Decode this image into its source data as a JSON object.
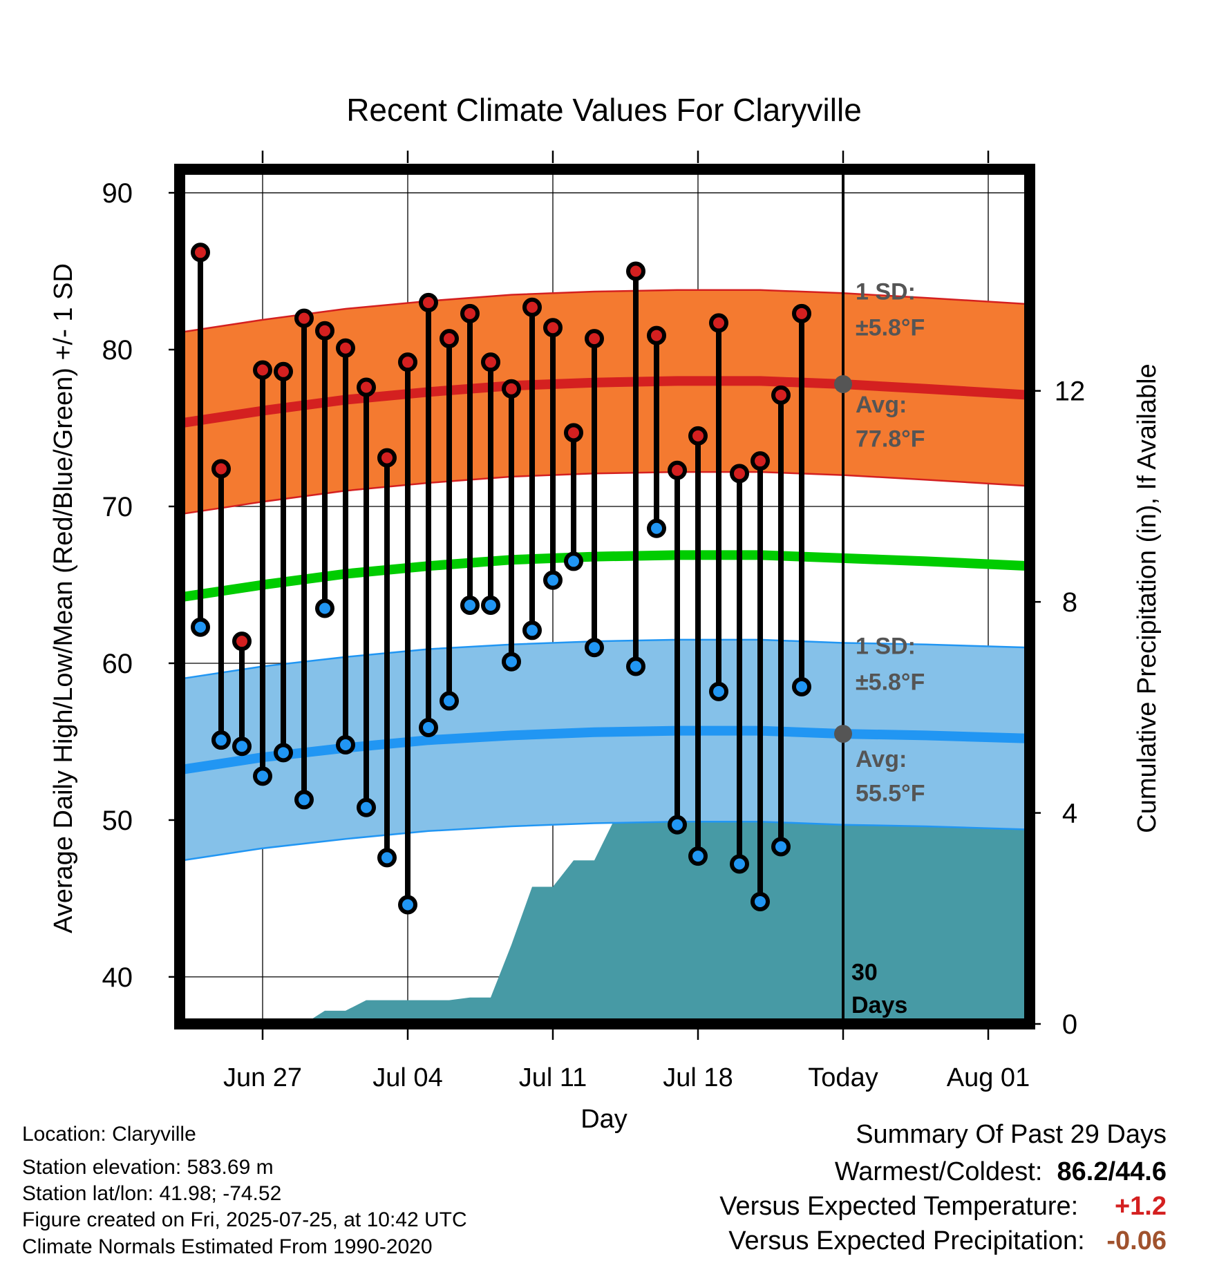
{
  "chart_data": {
    "type": "line",
    "title": "Recent Climate Values For Claryville",
    "xlabel": "Day",
    "ylabel": "Average Daily High/Low/Mean (Red/Blue/Green) +/- 1 SD",
    "y2label": "Cumulative Precipitation (in), If Available",
    "ylim": [
      37,
      91.5
    ],
    "y2lim": [
      0,
      16.2
    ],
    "xlim": [
      "2025-06-23",
      "2025-08-03"
    ],
    "yticks": [
      40,
      50,
      60,
      70,
      80,
      90
    ],
    "y2ticks": [
      0,
      4,
      8,
      12
    ],
    "xticks": [
      {
        "date": "2025-06-27",
        "label": "Jun 27"
      },
      {
        "date": "2025-07-04",
        "label": "Jul 04"
      },
      {
        "date": "2025-07-11",
        "label": "Jul 11"
      },
      {
        "date": "2025-07-18",
        "label": "Jul 18"
      },
      {
        "date": "2025-07-25",
        "label": "Today"
      },
      {
        "date": "2025-08-01",
        "label": "Aug 01"
      }
    ],
    "today": "2025-07-25",
    "grid": true,
    "normals": {
      "dates": [
        "2025-06-23",
        "2025-06-27",
        "2025-07-01",
        "2025-07-05",
        "2025-07-09",
        "2025-07-13",
        "2025-07-17",
        "2025-07-21",
        "2025-07-25",
        "2025-07-29",
        "2025-08-03"
      ],
      "high_avg": [
        75.3,
        76.1,
        76.8,
        77.3,
        77.7,
        77.9,
        78.0,
        78.0,
        77.8,
        77.5,
        77.1
      ],
      "high_sd": 5.8,
      "low_avg": [
        53.2,
        54.0,
        54.6,
        55.1,
        55.4,
        55.6,
        55.7,
        55.7,
        55.5,
        55.4,
        55.2
      ],
      "low_sd": 5.8,
      "mean_avg": [
        64.2,
        65.0,
        65.7,
        66.2,
        66.6,
        66.8,
        66.9,
        66.9,
        66.7,
        66.5,
        66.2
      ]
    },
    "series": [
      {
        "name": "High",
        "color": "#d42020",
        "x": [
          "2025-06-24",
          "2025-06-25",
          "2025-06-26",
          "2025-06-27",
          "2025-06-28",
          "2025-06-29",
          "2025-06-30",
          "2025-07-01",
          "2025-07-02",
          "2025-07-03",
          "2025-07-04",
          "2025-07-05",
          "2025-07-06",
          "2025-07-07",
          "2025-07-08",
          "2025-07-09",
          "2025-07-10",
          "2025-07-11",
          "2025-07-12",
          "2025-07-13",
          "2025-07-15",
          "2025-07-16",
          "2025-07-17",
          "2025-07-18",
          "2025-07-19",
          "2025-07-20",
          "2025-07-21",
          "2025-07-22",
          "2025-07-23",
          "2025-07-24"
        ],
        "values": [
          86.2,
          72.4,
          61.4,
          78.7,
          78.6,
          82.0,
          81.2,
          80.1,
          77.6,
          73.1,
          79.2,
          83.0,
          80.7,
          82.3,
          79.2,
          77.5,
          82.7,
          81.4,
          74.7,
          80.7,
          85.0,
          80.9,
          72.3,
          74.5,
          81.7,
          72.1,
          72.9,
          77.1,
          82.3,
          null
        ]
      },
      {
        "name": "Low",
        "color": "#2196f3",
        "x": [
          "2025-06-24",
          "2025-06-25",
          "2025-06-26",
          "2025-06-27",
          "2025-06-28",
          "2025-06-29",
          "2025-06-30",
          "2025-07-01",
          "2025-07-02",
          "2025-07-03",
          "2025-07-04",
          "2025-07-05",
          "2025-07-06",
          "2025-07-07",
          "2025-07-08",
          "2025-07-09",
          "2025-07-10",
          "2025-07-11",
          "2025-07-12",
          "2025-07-13",
          "2025-07-15",
          "2025-07-16",
          "2025-07-17",
          "2025-07-18",
          "2025-07-19",
          "2025-07-20",
          "2025-07-21",
          "2025-07-22",
          "2025-07-23",
          "2025-07-24"
        ],
        "values": [
          62.3,
          55.1,
          54.7,
          52.8,
          54.3,
          51.3,
          63.5,
          54.8,
          50.8,
          47.6,
          44.6,
          55.9,
          57.6,
          63.7,
          63.7,
          60.1,
          62.1,
          65.3,
          66.5,
          61.0,
          59.8,
          68.6,
          49.7,
          47.7,
          58.2,
          47.2,
          44.8,
          48.3,
          58.5,
          null
        ]
      }
    ],
    "precip": {
      "name": "Cumulative Precipitation",
      "color": "#479aa5",
      "x": [
        "2025-06-23",
        "2025-06-28",
        "2025-06-29",
        "2025-06-30",
        "2025-07-01",
        "2025-07-02",
        "2025-07-03",
        "2025-07-04",
        "2025-07-05",
        "2025-07-06",
        "2025-07-07",
        "2025-07-08",
        "2025-07-09",
        "2025-07-10",
        "2025-07-11",
        "2025-07-12",
        "2025-07-13",
        "2025-07-14",
        "2025-07-15",
        "2025-07-16",
        "2025-07-17",
        "2025-07-18",
        "2025-07-25",
        "2025-08-03"
      ],
      "values": [
        0.0,
        0.0,
        0.0,
        0.25,
        0.25,
        0.45,
        0.45,
        0.45,
        0.45,
        0.45,
        0.5,
        0.5,
        1.5,
        2.6,
        2.6,
        3.1,
        3.1,
        3.9,
        3.9,
        4.4,
        4.4,
        4.4,
        4.45,
        4.45
      ]
    },
    "annotations": {
      "high_sd_label": "1 SD:",
      "high_sd_value": "±5.8°F",
      "high_avg_label": "Avg:",
      "high_avg_value": "77.8°F",
      "low_sd_label": "1 SD:",
      "low_sd_value": "±5.8°F",
      "low_avg_label": "Avg:",
      "low_avg_value": "55.5°F",
      "days_num": "30",
      "days_label": "Days"
    }
  },
  "info": {
    "location": "Location: Claryville",
    "elevation": "Station elevation: 583.69 m",
    "latlon": "Station lat/lon: 41.98; -74.52",
    "created": "Figure created on Fri, 2025-07-25, at 10:42 UTC",
    "normals": "Climate Normals Estimated From 1990-2020"
  },
  "summary": {
    "title": "Summary Of Past 29 Days",
    "warm_cold_label": "Warmest/Coldest:",
    "warm_cold_value": "86.2/44.6",
    "temp_label": "Versus Expected Temperature:",
    "temp_value": "+1.2",
    "temp_color": "#d42020",
    "precip_label": "Versus Expected Precipitation:",
    "precip_value": "-0.06",
    "precip_color": "#a0522d"
  },
  "colors": {
    "high_band": "#f47a30",
    "high_line": "#d42020",
    "low_band": "#85c1e9",
    "low_line": "#2196f3",
    "mean_line": "#00cc00",
    "precip_fill": "#479aa5",
    "annotation": "#555555"
  }
}
